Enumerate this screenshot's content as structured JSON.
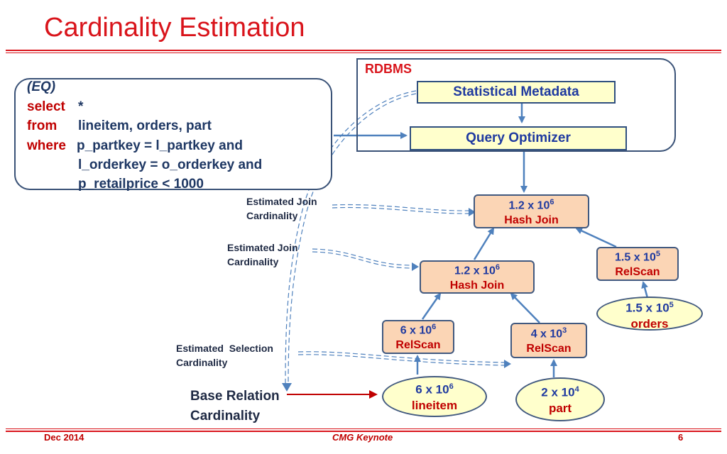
{
  "title": "Cardinality Estimation",
  "query": {
    "label": "(EQ)",
    "select_kw": "select",
    "select_val": "*",
    "from_kw": "from",
    "from_val": "lineitem, orders, part",
    "where_kw": "where",
    "where_val": "p_partkey = l_partkey and",
    "line4": "l_orderkey = o_orderkey and",
    "line5": "p_retailprice < 1000"
  },
  "rdbms": {
    "label": "RDBMS",
    "metadata": "Statistical Metadata",
    "optimizer": "Query Optimizer"
  },
  "plan": {
    "top_join": {
      "card_base": "1.2 x 10",
      "card_exp": "6",
      "op": "Hash Join"
    },
    "mid_join": {
      "card_base": "1.2 x 10",
      "card_exp": "6",
      "op": "Hash Join"
    },
    "scan_orders": {
      "card_base": "1.5 x 10",
      "card_exp": "5",
      "op": "RelScan"
    },
    "scan_lineitem": {
      "card_base": "6 x 10",
      "card_exp": "6",
      "op": "RelScan"
    },
    "scan_part": {
      "card_base": "4 x 10",
      "card_exp": "3",
      "op": "RelScan"
    },
    "rel_orders": {
      "card_base": "1.5 x 10",
      "card_exp": "5",
      "name": "orders"
    },
    "rel_lineitem": {
      "card_base": "6 x 10",
      "card_exp": "6",
      "name": "lineitem"
    },
    "rel_part": {
      "card_base": "2 x 10",
      "card_exp": "4",
      "name": "part"
    }
  },
  "notes": {
    "join1": [
      "Estimated Join",
      "Cardinality"
    ],
    "join2": [
      "Estimated Join",
      "Cardinality"
    ],
    "selection": [
      "Estimated  Selection",
      "Cardinality"
    ],
    "base": [
      "Base Relation",
      "Cardinality"
    ]
  },
  "footer": {
    "date": "Dec 2014",
    "center": "CMG Keynote",
    "page": "6"
  },
  "colors": {
    "title_red": "#d9141b",
    "navy": "#1f3864",
    "operator_fill": "#fbd5b5",
    "relation_fill": "#ffffcc",
    "arrow_blue": "#4f81bd"
  }
}
